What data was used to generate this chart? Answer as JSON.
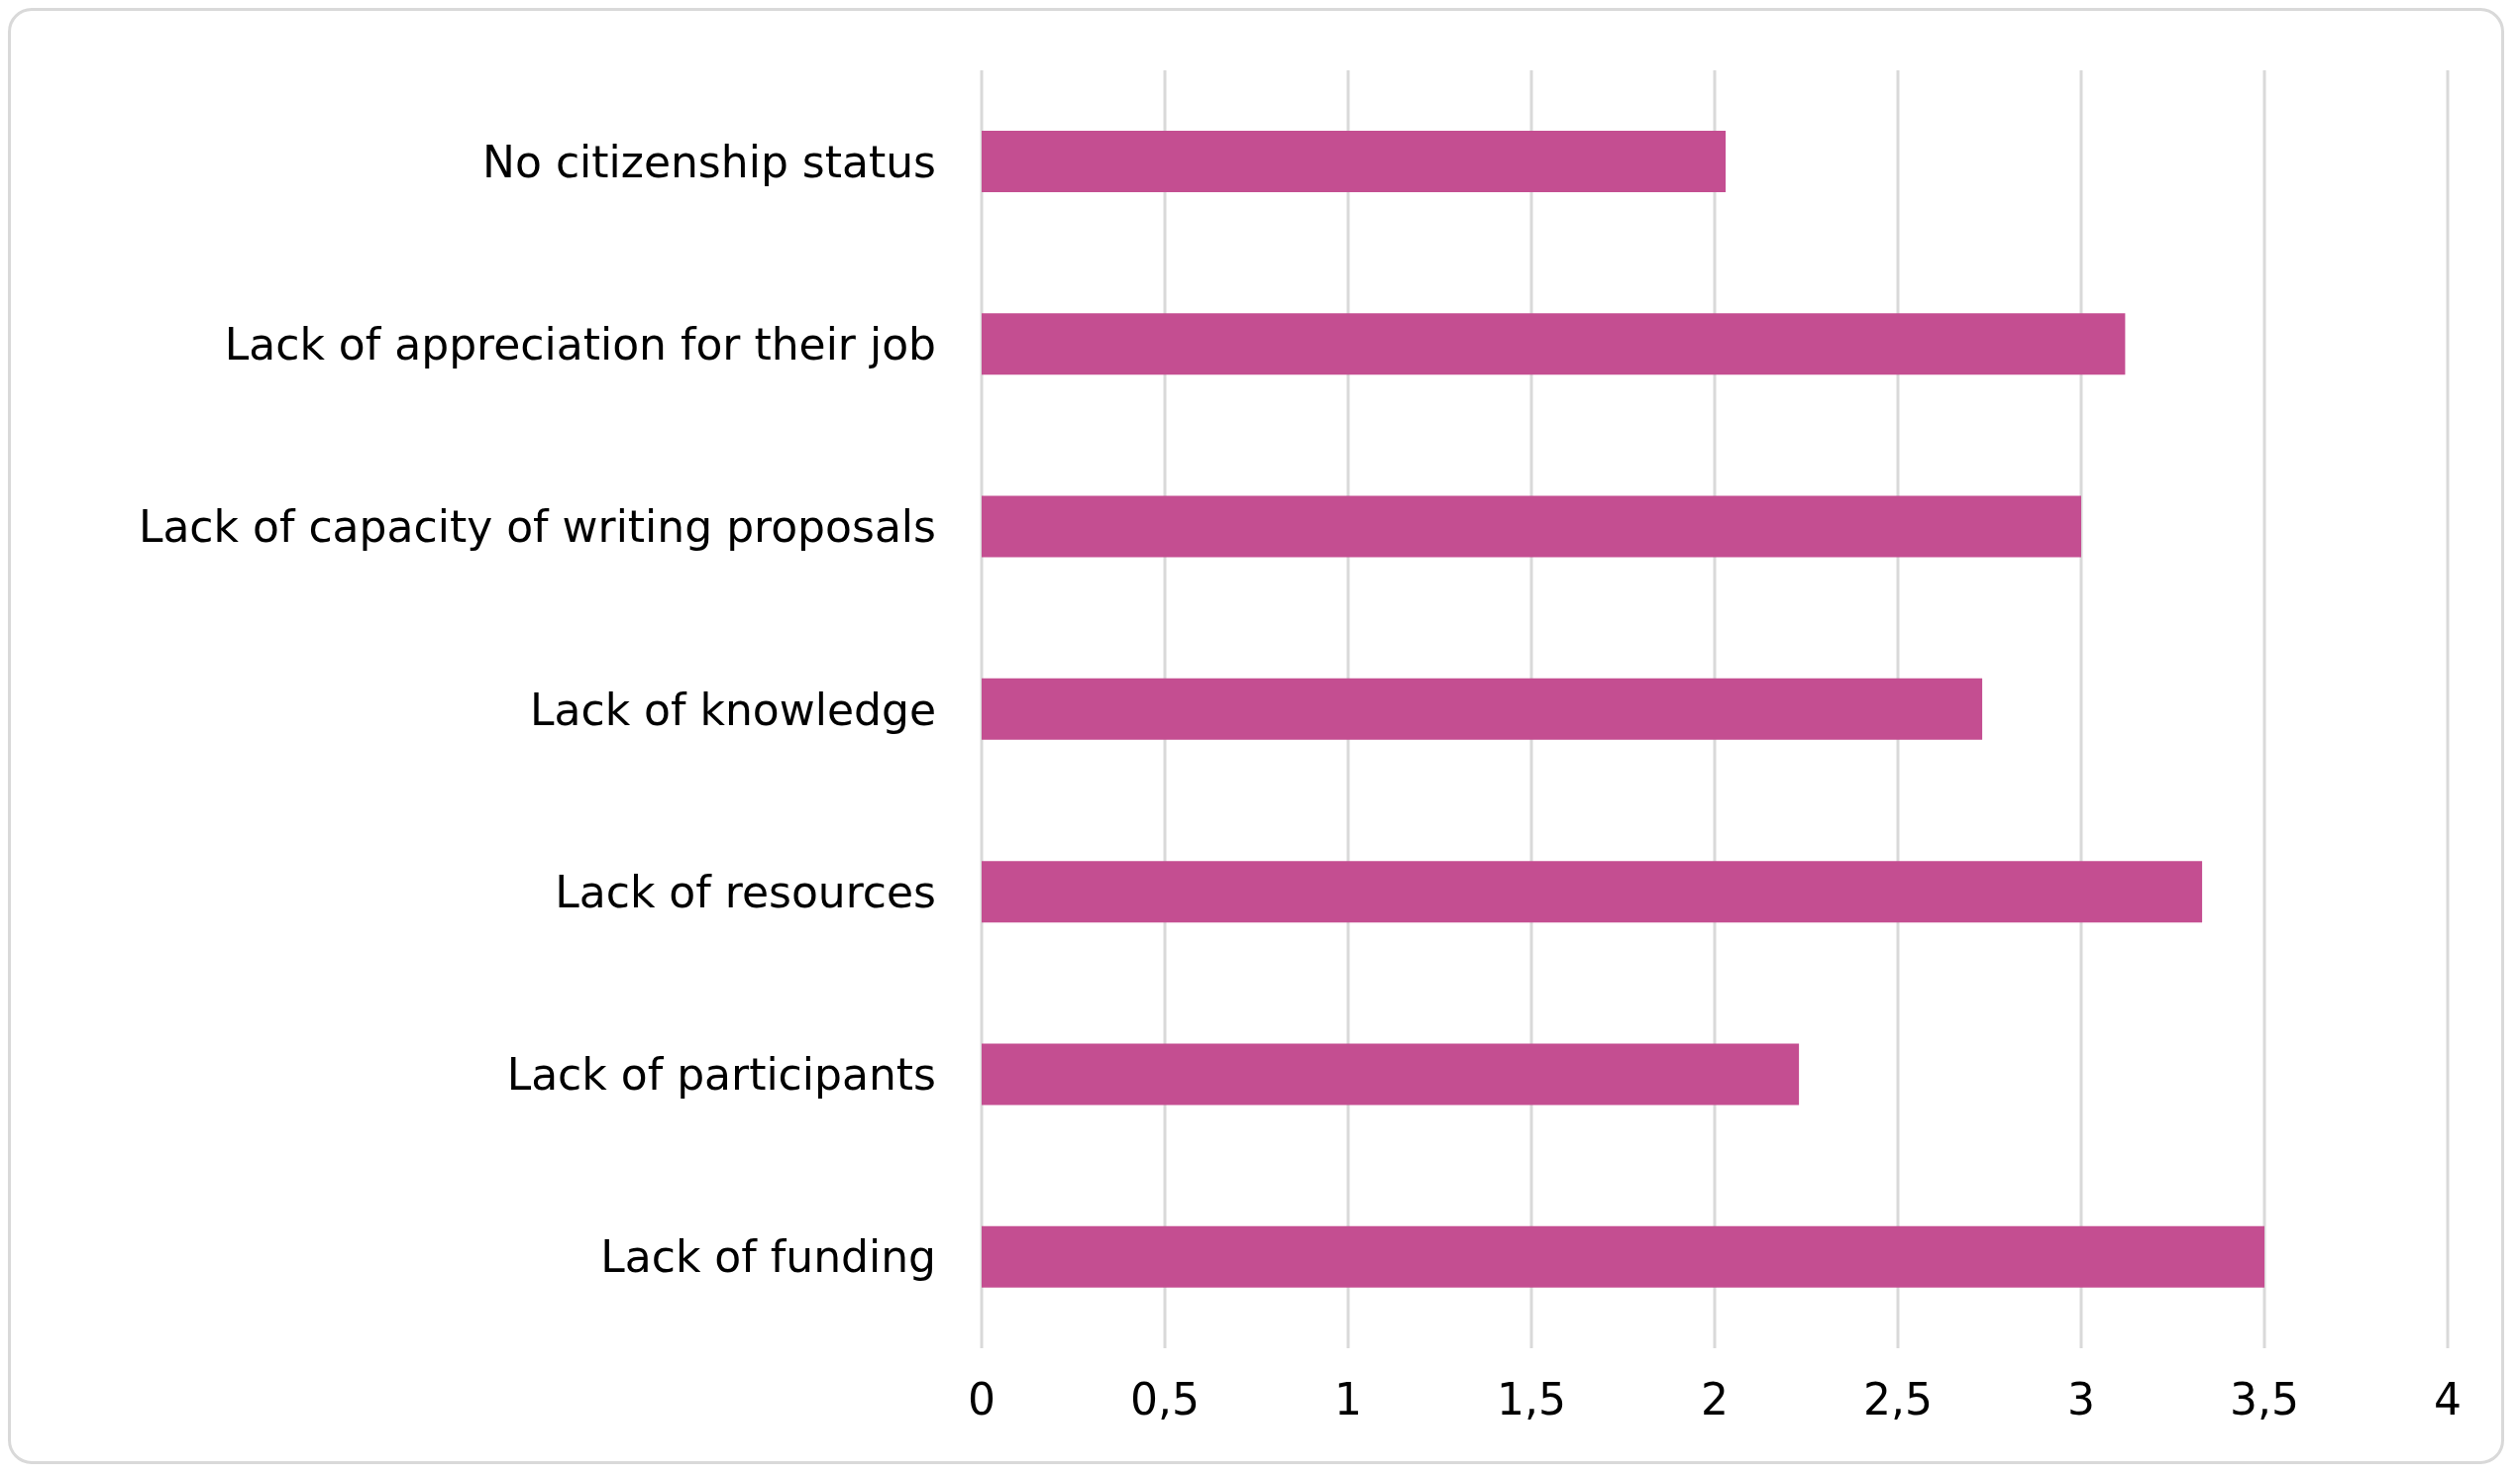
{
  "chart_data": {
    "type": "bar",
    "orientation": "horizontal",
    "categories": [
      "No citizenship status",
      "Lack of appreciation for their job",
      "Lack of capacity of writing proposals",
      "Lack of knowledge",
      "Lack of resources",
      "Lack of participants",
      "Lack of funding"
    ],
    "values": [
      2.03,
      3.12,
      3.0,
      2.73,
      3.33,
      2.23,
      3.5
    ],
    "color": "#c44e91",
    "xlim": [
      0,
      4
    ],
    "xticks": [
      0,
      {
        "value": 0.5,
        "label": "0,5"
      },
      1,
      {
        "value": 1.5,
        "label": "1,5"
      },
      2,
      {
        "value": 2.5,
        "label": "2,5"
      },
      3,
      {
        "value": 3.5,
        "label": "3,5"
      },
      4
    ],
    "grid": "x"
  }
}
